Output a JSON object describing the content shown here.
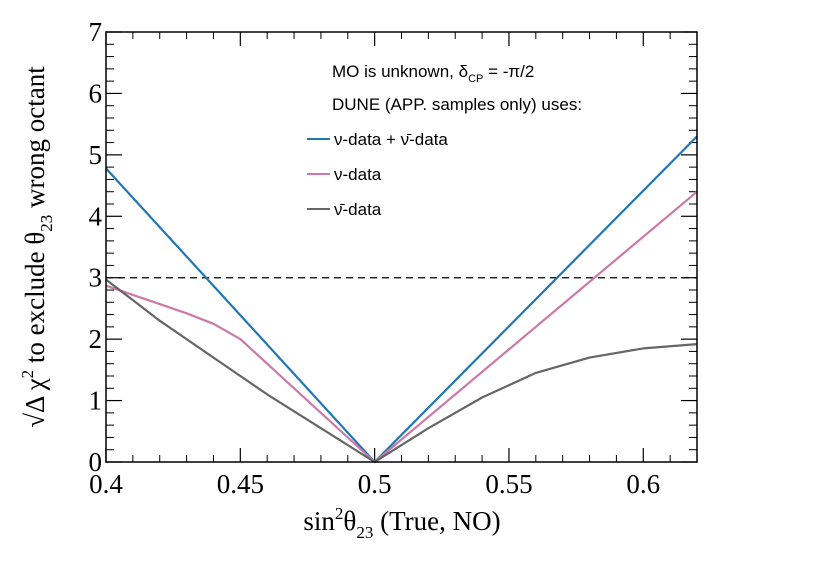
{
  "chart_data": {
    "type": "line",
    "title": "",
    "xlabel": "sin²θ₂₃ (True, NO)",
    "ylabel": "√Δχ² to exclude θ₂₃ wrong octant",
    "xlim": [
      0.4,
      0.62
    ],
    "ylim": [
      0,
      7
    ],
    "x_ticks": [
      "0.4",
      "0.45",
      "0.5",
      "0.55",
      "0.6"
    ],
    "y_ticks": [
      "0",
      "1",
      "2",
      "3",
      "4",
      "5",
      "6",
      "7"
    ],
    "grid": false,
    "reference_line": {
      "y": 3,
      "style": "dashed",
      "color": "#000000"
    },
    "annotation_lines": [
      "MO is unknown, δ_CP = -π/2",
      "DUNE (APP. samples only) uses:"
    ],
    "legend_position": "top-center",
    "series": [
      {
        "name": "ν-data + ν̄-data",
        "color": "#1f77b4",
        "x": [
          0.4,
          0.5,
          0.62
        ],
        "y": [
          4.78,
          0.0,
          5.3
        ]
      },
      {
        "name": "ν-data",
        "color": "#cc79a7",
        "x": [
          0.4,
          0.41,
          0.42,
          0.43,
          0.44,
          0.45,
          0.5,
          0.62
        ],
        "y": [
          2.87,
          2.72,
          2.57,
          2.42,
          2.25,
          2.0,
          0.0,
          4.4
        ]
      },
      {
        "name": "ν̄-data",
        "color": "#666666",
        "x": [
          0.4,
          0.42,
          0.44,
          0.46,
          0.48,
          0.5,
          0.52,
          0.54,
          0.56,
          0.58,
          0.6,
          0.62
        ],
        "y": [
          2.97,
          2.3,
          1.7,
          1.1,
          0.55,
          0.0,
          0.55,
          1.05,
          1.45,
          1.7,
          1.85,
          1.92
        ]
      }
    ]
  }
}
